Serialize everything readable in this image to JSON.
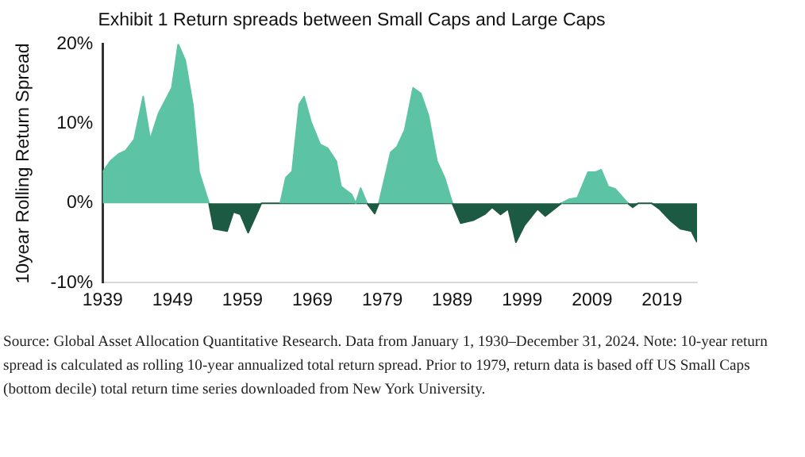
{
  "chart_data": {
    "type": "area",
    "title": "Exhibit 1 Return spreads between Small Caps and Large Caps",
    "ylabel": "10year Rolling Return Spread",
    "xlim": [
      1939,
      2024
    ],
    "xticks": [
      1939,
      1949,
      1959,
      1969,
      1979,
      1989,
      1999,
      2009,
      2019
    ],
    "ylim": [
      -10,
      20
    ],
    "yticks": [
      {
        "value": -10,
        "label": "-10%"
      },
      {
        "value": 0,
        "label": "0%"
      },
      {
        "value": 10,
        "label": "10%"
      },
      {
        "value": 20,
        "label": "20%"
      }
    ],
    "grid": false,
    "legend": false,
    "series": [
      {
        "color": "#5cc4a4",
        "x": [
          1939,
          1940.1,
          1941.3,
          1942.3,
          1943.5,
          1944.8,
          1945.8,
          1947.0,
          1948.9,
          1949.8,
          1950.8,
          1951.9,
          1952.8,
          1954.2,
          1959,
          1964.4,
          1965.2,
          1966.1,
          1967.1,
          1967.8,
          1968.8,
          1970.1,
          1971.2,
          1972.4,
          1973.1,
          1974.6,
          1975.2,
          1975.9,
          1976.8,
          1977.5,
          1978.5,
          1980.2,
          1981.1,
          1982.2,
          1983.4,
          1984.5,
          1985.6,
          1986.8,
          1987.9,
          1989.0,
          1996,
          2004.6,
          2005.7,
          2006.9,
          2008.4,
          2009.5,
          2010.3,
          2011.3,
          2012.3,
          2014.1
        ],
        "values": [
          3.9,
          5.3,
          6.2,
          6.6,
          8.0,
          13.4,
          8.0,
          11.3,
          14.5,
          20,
          18,
          12.4,
          3.9,
          0,
          null,
          0,
          3.2,
          4,
          12.4,
          13.4,
          10.2,
          7.4,
          6.9,
          5.3,
          2.1,
          1.1,
          0,
          1.9,
          0,
          null,
          0,
          6.4,
          7.1,
          9.2,
          14.5,
          13.8,
          11,
          5.3,
          3.2,
          0,
          null,
          0,
          0.5,
          0.7,
          3.9,
          3.9,
          4.2,
          2.1,
          1.8,
          0
        ]
      },
      {
        "color": "#1d5a44",
        "x": [
          1954.2,
          1954.9,
          1956.8,
          1957.7,
          1958.7,
          1959.8,
          1961.7,
          1976.8,
          1977.9,
          1978.5,
          1989.0,
          1990.2,
          1992.1,
          1993.6,
          1994.7,
          1995.9,
          1997.0,
          1998.1,
          1999.3,
          2001.2,
          2002.3,
          2004.6,
          2014.1,
          2014.8,
          2015.6,
          2017.5,
          2018.6,
          2020.1,
          2021.6,
          2023.2,
          2024.0
        ],
        "values": [
          0,
          -3.2,
          -3.5,
          -1.1,
          -1.4,
          -3.7,
          0,
          0,
          -1.3,
          0,
          0,
          -2.5,
          -2.1,
          -1.4,
          -0.5,
          -1.4,
          -0.7,
          -4.9,
          -2.8,
          -0.7,
          -1.6,
          0,
          0,
          -0.5,
          0,
          0,
          -0.7,
          -2.1,
          -3.2,
          -3.5,
          -4.9
        ]
      }
    ],
    "annotations": [
      "Source: Global Asset Allocation Quantitative Research. Data from January 1, 1930–December 31, 2024. Note: 10-year return spread is calculated as rolling 10-year annualized total return spread. Prior to 1979, return data is based off US Small Caps (bottom decile) total return time series downloaded from New York University."
    ]
  }
}
